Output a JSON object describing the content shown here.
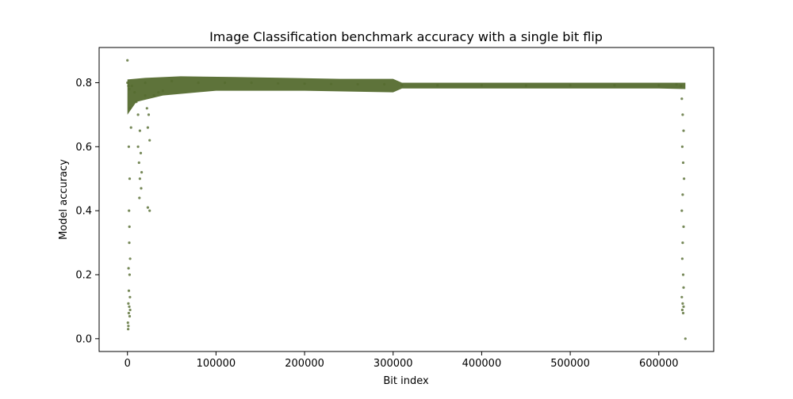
{
  "chart_data": {
    "type": "scatter",
    "title": "Image Classification benchmark accuracy with a single bit flip",
    "xlabel": "Bit index",
    "ylabel": "Model accuracy",
    "xlim": [
      -32000,
      662000
    ],
    "ylim": [
      -0.04,
      0.91
    ],
    "x_ticks": [
      0,
      100000,
      200000,
      300000,
      400000,
      500000,
      600000
    ],
    "y_ticks": [
      0.0,
      0.2,
      0.4,
      0.6,
      0.8
    ],
    "y_tick_labels": [
      "0.0",
      "0.2",
      "0.4",
      "0.6",
      "0.8"
    ],
    "grid": false,
    "marker_color": "#556b2f",
    "series": [
      {
        "points": [
          [
            0,
            0.87
          ],
          [
            630000,
            0.0
          ],
          [
            0,
            0.8
          ],
          [
            1000,
            0.79
          ],
          [
            2000,
            0.78
          ],
          [
            3000,
            0.72
          ],
          [
            4000,
            0.66
          ],
          [
            1500,
            0.6
          ],
          [
            2500,
            0.5
          ],
          [
            1800,
            0.4
          ],
          [
            2200,
            0.35
          ],
          [
            2000,
            0.3
          ],
          [
            3000,
            0.25
          ],
          [
            1200,
            0.22
          ],
          [
            2400,
            0.2
          ],
          [
            1600,
            0.15
          ],
          [
            2800,
            0.13
          ],
          [
            1000,
            0.11
          ],
          [
            2000,
            0.1
          ],
          [
            3000,
            0.09
          ],
          [
            1500,
            0.08
          ],
          [
            2500,
            0.07
          ],
          [
            500,
            0.05
          ],
          [
            1000,
            0.04
          ],
          [
            800,
            0.03
          ],
          [
            5000,
            0.79
          ],
          [
            8000,
            0.77
          ],
          [
            10000,
            0.74
          ],
          [
            12000,
            0.7
          ],
          [
            14000,
            0.65
          ],
          [
            12000,
            0.6
          ],
          [
            15000,
            0.58
          ],
          [
            13000,
            0.55
          ],
          [
            16000,
            0.52
          ],
          [
            14000,
            0.5
          ],
          [
            15500,
            0.47
          ],
          [
            13500,
            0.44
          ],
          [
            20000,
            0.76
          ],
          [
            22000,
            0.72
          ],
          [
            24000,
            0.7
          ],
          [
            23000,
            0.66
          ],
          [
            25000,
            0.62
          ],
          [
            23000,
            0.41
          ],
          [
            25000,
            0.4
          ],
          [
            30000,
            0.76
          ],
          [
            35000,
            0.77
          ],
          [
            40000,
            0.775
          ],
          [
            20000,
            0.8
          ],
          [
            50000,
            0.805
          ],
          [
            80000,
            0.8
          ],
          [
            110000,
            0.8
          ],
          [
            140000,
            0.8
          ],
          [
            170000,
            0.798
          ],
          [
            200000,
            0.797
          ],
          [
            230000,
            0.796
          ],
          [
            260000,
            0.795
          ],
          [
            290000,
            0.795
          ],
          [
            310000,
            0.792
          ],
          [
            350000,
            0.792
          ],
          [
            400000,
            0.792
          ],
          [
            450000,
            0.791
          ],
          [
            500000,
            0.792
          ],
          [
            550000,
            0.792
          ],
          [
            600000,
            0.792
          ],
          [
            620000,
            0.795
          ],
          [
            625000,
            0.79
          ],
          [
            626000,
            0.75
          ],
          [
            627000,
            0.7
          ],
          [
            628000,
            0.65
          ],
          [
            626500,
            0.6
          ],
          [
            627500,
            0.55
          ],
          [
            628500,
            0.5
          ],
          [
            627000,
            0.45
          ],
          [
            626000,
            0.4
          ],
          [
            628000,
            0.35
          ],
          [
            627000,
            0.3
          ],
          [
            626500,
            0.25
          ],
          [
            627500,
            0.2
          ],
          [
            628000,
            0.16
          ],
          [
            626000,
            0.13
          ],
          [
            627000,
            0.11
          ],
          [
            628000,
            0.1
          ],
          [
            626500,
            0.09
          ],
          [
            627500,
            0.08
          ]
        ]
      }
    ]
  }
}
